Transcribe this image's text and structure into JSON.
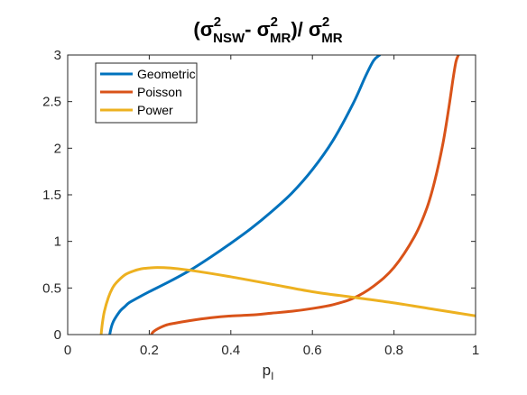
{
  "chart_data": {
    "type": "line",
    "title": {
      "open": "(σ",
      "sup1": "2",
      "sub1": "NSW",
      "mid": "- σ",
      "sup2": "2",
      "sub2": "MR",
      "div": ")/ σ",
      "sup3": "2",
      "sub3": "MR"
    },
    "xlabel": {
      "main": "p",
      "sub": "I"
    },
    "ylabel": "",
    "xlim": [
      0,
      1
    ],
    "ylim": [
      0,
      3
    ],
    "xticks": [
      0,
      0.2,
      0.4,
      0.6,
      0.8,
      1
    ],
    "xtick_labels": [
      "0",
      "0.2",
      "0.4",
      "0.6",
      "0.8",
      "1"
    ],
    "yticks": [
      0,
      0.5,
      1,
      1.5,
      2,
      2.5,
      3
    ],
    "ytick_labels": [
      "0",
      "0.5",
      "1",
      "1.5",
      "2",
      "2.5",
      "3"
    ],
    "grid": false,
    "legend_position": "top-left",
    "series": [
      {
        "name": "Geometric",
        "color": "#0072BD",
        "x": [
          0.103,
          0.107,
          0.112,
          0.12,
          0.13,
          0.14,
          0.15,
          0.17,
          0.2,
          0.25,
          0.3,
          0.35,
          0.4,
          0.45,
          0.5,
          0.55,
          0.6,
          0.65,
          0.7,
          0.73,
          0.75,
          0.765
        ],
        "y": [
          0,
          0.08,
          0.14,
          0.2,
          0.26,
          0.3,
          0.34,
          0.39,
          0.46,
          0.57,
          0.69,
          0.83,
          0.98,
          1.14,
          1.32,
          1.52,
          1.77,
          2.08,
          2.48,
          2.77,
          2.94,
          3.0
        ]
      },
      {
        "name": "Poisson",
        "color": "#D95319",
        "x": [
          0.205,
          0.21,
          0.22,
          0.24,
          0.26,
          0.3,
          0.35,
          0.4,
          0.45,
          0.5,
          0.55,
          0.6,
          0.65,
          0.7,
          0.75,
          0.8,
          0.85,
          0.88,
          0.9,
          0.92,
          0.935,
          0.945,
          0.952,
          0.958
        ],
        "y": [
          0,
          0.03,
          0.06,
          0.1,
          0.12,
          0.15,
          0.18,
          0.2,
          0.21,
          0.23,
          0.25,
          0.28,
          0.32,
          0.39,
          0.52,
          0.72,
          1.05,
          1.35,
          1.65,
          2.05,
          2.45,
          2.75,
          2.93,
          3.0
        ]
      },
      {
        "name": "Power",
        "color": "#EDB120",
        "x": [
          0.082,
          0.085,
          0.09,
          0.1,
          0.11,
          0.12,
          0.14,
          0.16,
          0.18,
          0.2,
          0.22,
          0.25,
          0.3,
          0.4,
          0.5,
          0.6,
          0.7,
          0.8,
          0.9,
          1.0
        ],
        "y": [
          0,
          0.12,
          0.25,
          0.4,
          0.5,
          0.56,
          0.64,
          0.68,
          0.705,
          0.715,
          0.72,
          0.715,
          0.69,
          0.62,
          0.54,
          0.46,
          0.4,
          0.34,
          0.27,
          0.2
        ]
      }
    ]
  }
}
